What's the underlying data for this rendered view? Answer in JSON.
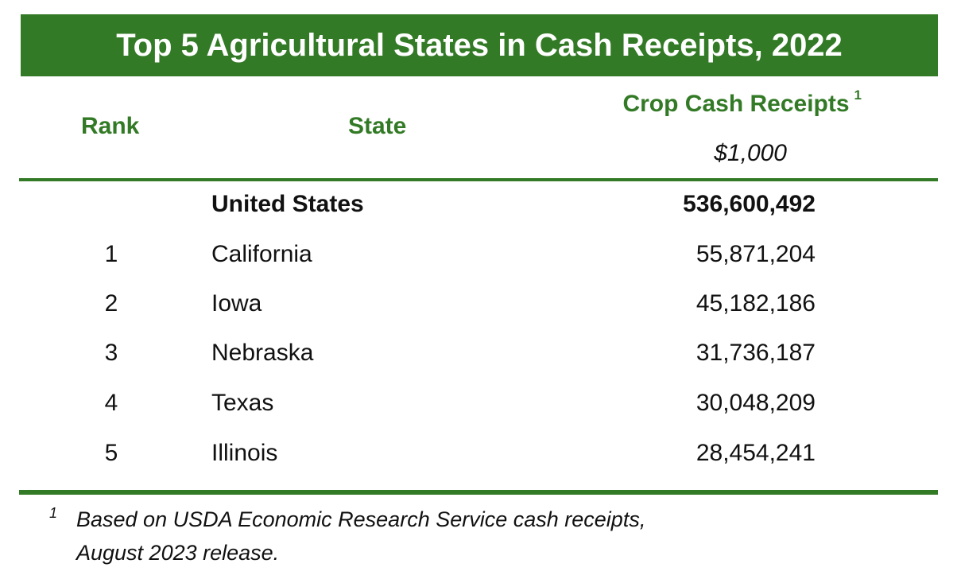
{
  "title": "Top 5 Agricultural States in Cash Receipts, 2022",
  "colors": {
    "accent": "#337a26",
    "text": "#111111",
    "background": "#ffffff"
  },
  "headers": {
    "rank": "Rank",
    "state": "State",
    "crop": "Crop Cash Receipts",
    "crop_footnote_mark": "1",
    "unit": "$1,000"
  },
  "total": {
    "rank": "",
    "state": "United States",
    "value": "536,600,492"
  },
  "rows": [
    {
      "rank": "1",
      "state": "California",
      "value": "55,871,204"
    },
    {
      "rank": "2",
      "state": "Iowa",
      "value": "45,182,186"
    },
    {
      "rank": "3",
      "state": "Nebraska",
      "value": "31,736,187"
    },
    {
      "rank": "4",
      "state": "Texas",
      "value": "30,048,209"
    },
    {
      "rank": "5",
      "state": "Illinois",
      "value": "28,454,241"
    }
  ],
  "footnote": {
    "mark": "1",
    "line1": "Based on USDA Economic Research Service cash receipts,",
    "line2": "August 2023 release."
  }
}
